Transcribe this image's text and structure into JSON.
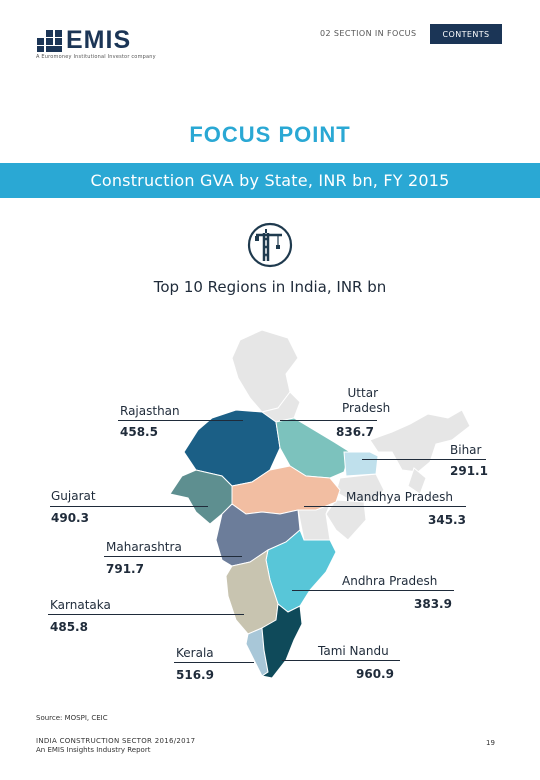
{
  "header": {
    "logo_text": "EMIS",
    "tagline": "A Euromoney Institutional Investor company",
    "section_link": "02 SECTION IN FOCUS",
    "contents_label": "CONTENTS"
  },
  "page": {
    "title": "FOCUS POINT",
    "band": "Construction GVA by State, INR bn, FY 2015",
    "icon": "construction-crane-icon"
  },
  "chart_data": {
    "type": "map",
    "title": "Top 10 Regions in India, INR bn",
    "unit": "INR bn",
    "regions": [
      {
        "name": "Rajasthan",
        "value": 458.5,
        "color": "#1b5f86"
      },
      {
        "name": "Uttar Pradesh",
        "value": 836.7,
        "color": "#7cc2bd"
      },
      {
        "name": "Bihar",
        "value": 291.1,
        "color": "#bfe0ec"
      },
      {
        "name": "Gujarat",
        "value": 490.3,
        "color": "#5e8f90"
      },
      {
        "name": "Mandhya Pradesh",
        "value": 345.3,
        "color": "#f2bea2"
      },
      {
        "name": "Maharashtra",
        "value": 791.7,
        "color": "#6c7d9a"
      },
      {
        "name": "Andhra Pradesh",
        "value": 383.9,
        "color": "#58c6d8"
      },
      {
        "name": "Karnataka",
        "value": 485.8,
        "color": "#c8c4b0"
      },
      {
        "name": "Kerala",
        "value": 516.9,
        "color": "#a8c7d8"
      },
      {
        "name": "Tami Nandu",
        "value": 960.9,
        "color": "#0f4a5a"
      }
    ],
    "other_color": "#e6e6e6"
  },
  "callouts": {
    "rajasthan": {
      "label": "Rajasthan",
      "value": "458.5"
    },
    "uttar_pradesh": {
      "label": "Uttar Pradesh",
      "value": "836.7"
    },
    "bihar": {
      "label": "Bihar",
      "value": "291.1"
    },
    "gujarat": {
      "label": "Gujarat",
      "value": "490.3"
    },
    "madhya_pradesh": {
      "label": "Mandhya Pradesh",
      "value": "345.3"
    },
    "maharashtra": {
      "label": "Maharashtra",
      "value": "791.7"
    },
    "andhra_pradesh": {
      "label": "Andhra Pradesh",
      "value": "383.9"
    },
    "karnataka": {
      "label": "Karnataka",
      "value": "485.8"
    },
    "kerala": {
      "label": "Kerala",
      "value": "516.9"
    },
    "tamil_nadu": {
      "label": "Tami Nandu",
      "value": "960.9"
    }
  },
  "footer": {
    "source": "Source: MOSPI, CEIC",
    "report_line1": "INDIA CONSTRUCTION SECTOR 2016/2017",
    "report_line2": "An EMIS Insights Industry Report",
    "page_number": "19"
  }
}
